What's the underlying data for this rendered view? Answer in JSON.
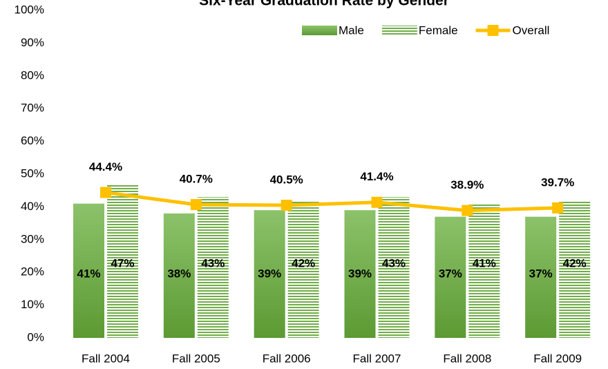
{
  "chart_data": {
    "type": "bar",
    "title": "Six-Year Graduation Rate by Gender",
    "categories": [
      "Fall 2004",
      "Fall 2005",
      "Fall 2006",
      "Fall 2007",
      "Fall 2008",
      "Fall 2009"
    ],
    "series": [
      {
        "name": "Male",
        "color": "#70ad47",
        "values": [
          41,
          38,
          39,
          39,
          37,
          37
        ],
        "value_labels": [
          "41%",
          "38%",
          "39%",
          "39%",
          "37%",
          "37%"
        ]
      },
      {
        "name": "Female",
        "color": "#70ad47",
        "values": [
          47,
          43,
          42,
          43,
          41,
          42
        ],
        "value_labels": [
          "47%",
          "43%",
          "42%",
          "43%",
          "41%",
          "42%"
        ]
      },
      {
        "name": "Overall",
        "type": "line",
        "color": "#ffc000",
        "values": [
          44.4,
          40.7,
          40.5,
          41.4,
          38.9,
          39.7
        ],
        "value_labels": [
          "44.4%",
          "40.7%",
          "40.5%",
          "41.4%",
          "38.9%",
          "39.7%"
        ]
      }
    ],
    "ylim": [
      0,
      100
    ],
    "yticks": [
      {
        "value": 0,
        "label": "0%"
      },
      {
        "value": 10,
        "label": "10%"
      },
      {
        "value": 20,
        "label": "20%"
      },
      {
        "value": 30,
        "label": "30%"
      },
      {
        "value": 40,
        "label": "40%"
      },
      {
        "value": 50,
        "label": "50%"
      },
      {
        "value": 60,
        "label": "60%"
      },
      {
        "value": 70,
        "label": "70%"
      },
      {
        "value": 80,
        "label": "80%"
      },
      {
        "value": 90,
        "label": "90%"
      },
      {
        "value": 100,
        "label": "100%"
      }
    ],
    "legend": "top-right"
  }
}
